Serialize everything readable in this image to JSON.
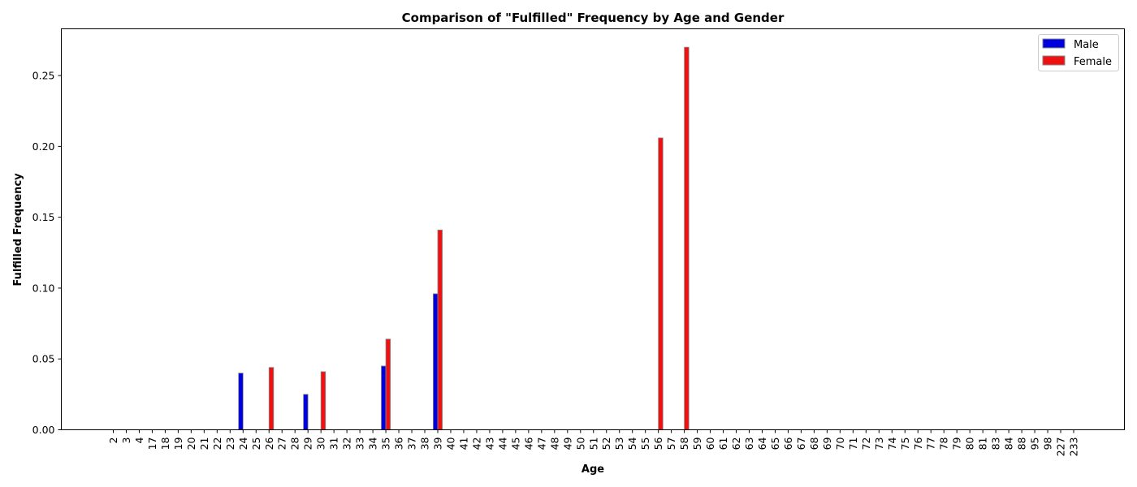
{
  "chart_data": {
    "type": "bar",
    "title": "Comparison of \"Fulfilled\" Frequency by Age and Gender",
    "xlabel": "Age",
    "ylabel": "Fulfilled Frequency",
    "ylim": [
      0,
      0.283
    ],
    "yticks": [
      "0.00",
      "0.05",
      "0.10",
      "0.15",
      "0.20",
      "0.25"
    ],
    "categories": [
      "2",
      "3",
      "4",
      "17",
      "18",
      "19",
      "20",
      "21",
      "22",
      "23",
      "24",
      "25",
      "26",
      "27",
      "28",
      "29",
      "30",
      "31",
      "32",
      "33",
      "34",
      "35",
      "36",
      "37",
      "38",
      "39",
      "40",
      "41",
      "42",
      "43",
      "44",
      "45",
      "46",
      "47",
      "48",
      "49",
      "50",
      "51",
      "52",
      "53",
      "54",
      "55",
      "56",
      "57",
      "58",
      "59",
      "60",
      "61",
      "62",
      "63",
      "64",
      "65",
      "66",
      "67",
      "68",
      "69",
      "70",
      "71",
      "72",
      "73",
      "74",
      "75",
      "76",
      "77",
      "78",
      "79",
      "80",
      "81",
      "83",
      "84",
      "88",
      "95",
      "98",
      "227",
      "233"
    ],
    "series": [
      {
        "name": "Male",
        "color": "#0000dd",
        "values": [
          0,
          0,
          0,
          0,
          0,
          0,
          0,
          0,
          0,
          0,
          0.04,
          0,
          0,
          0,
          0,
          0.025,
          0,
          0,
          0,
          0,
          0,
          0.045,
          0,
          0,
          0,
          0.096,
          0,
          0,
          0,
          0,
          0,
          0,
          0,
          0,
          0,
          0,
          0,
          0,
          0,
          0,
          0,
          0,
          0,
          0,
          0,
          0,
          0,
          0,
          0,
          0,
          0,
          0,
          0,
          0,
          0,
          0,
          0,
          0,
          0,
          0,
          0,
          0,
          0,
          0,
          0,
          0,
          0,
          0,
          0,
          0,
          0,
          0,
          0,
          0,
          0
        ]
      },
      {
        "name": "Female",
        "color": "#ee1111",
        "values": [
          0,
          0,
          0,
          0,
          0,
          0,
          0,
          0,
          0,
          0,
          0,
          0,
          0.044,
          0,
          0,
          0,
          0.041,
          0,
          0,
          0,
          0,
          0.064,
          0,
          0,
          0,
          0.141,
          0,
          0,
          0,
          0,
          0,
          0,
          0,
          0,
          0,
          0,
          0,
          0,
          0,
          0,
          0,
          0,
          0.206,
          0,
          0.27,
          0,
          0,
          0,
          0,
          0,
          0,
          0,
          0,
          0,
          0,
          0,
          0,
          0,
          0,
          0,
          0,
          0,
          0,
          0,
          0,
          0,
          0,
          0,
          0,
          0,
          0,
          0,
          0,
          0,
          0
        ]
      }
    ],
    "grid": false,
    "legend_position": "top-right"
  }
}
